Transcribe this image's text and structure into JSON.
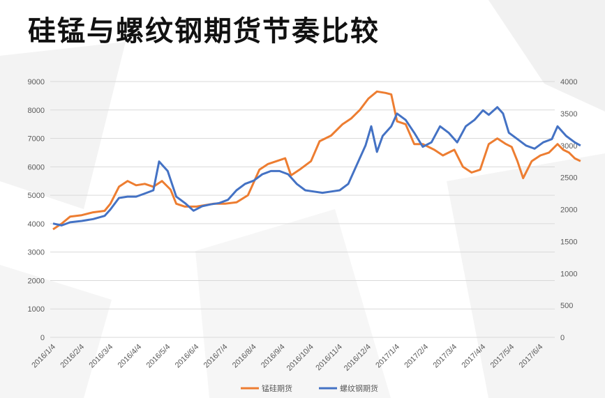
{
  "page_title": "硅锰与螺纹钢期货节奏比较",
  "chart_data": {
    "type": "line",
    "title": "",
    "x_labels": [
      "2016/1/4",
      "2016/2/4",
      "2016/3/4",
      "2016/4/4",
      "2016/5/4",
      "2016/6/4",
      "2016/7/4",
      "2016/8/4",
      "2016/9/4",
      "2016/10/4",
      "2016/11/4",
      "2016/12/4",
      "2017/1/4",
      "2017/2/4",
      "2017/3/4",
      "2017/4/4",
      "2017/5/4",
      "2017/6/4"
    ],
    "y_left": {
      "min": 0,
      "max": 9000,
      "ticks": [
        "0",
        "1000",
        "2000",
        "3000",
        "4000",
        "5000",
        "6000",
        "7000",
        "8000",
        "9000"
      ]
    },
    "y_right": {
      "min": 0,
      "max": 4000,
      "ticks": [
        "0",
        "500",
        "1000",
        "1500",
        "2000",
        "2500",
        "3000",
        "3500",
        "4000"
      ]
    },
    "grid": true,
    "legend_position": "bottom",
    "series": [
      {
        "name": "锰硅期货",
        "axis": "left",
        "color": "#ED7D31",
        "points": [
          [
            0.0,
            3800
          ],
          [
            0.3,
            4000
          ],
          [
            0.6,
            4250
          ],
          [
            1.0,
            4300
          ],
          [
            1.4,
            4400
          ],
          [
            1.8,
            4450
          ],
          [
            2.0,
            4700
          ],
          [
            2.3,
            5300
          ],
          [
            2.6,
            5500
          ],
          [
            2.9,
            5350
          ],
          [
            3.2,
            5400
          ],
          [
            3.5,
            5300
          ],
          [
            3.8,
            5500
          ],
          [
            4.1,
            5200
          ],
          [
            4.3,
            4700
          ],
          [
            4.6,
            4600
          ],
          [
            5.0,
            4600
          ],
          [
            5.3,
            4650
          ],
          [
            5.6,
            4700
          ],
          [
            6.0,
            4700
          ],
          [
            6.4,
            4750
          ],
          [
            6.8,
            5000
          ],
          [
            7.2,
            5900
          ],
          [
            7.5,
            6100
          ],
          [
            7.8,
            6200
          ],
          [
            8.1,
            6300
          ],
          [
            8.3,
            5700
          ],
          [
            8.6,
            5900
          ],
          [
            9.0,
            6200
          ],
          [
            9.3,
            6900
          ],
          [
            9.7,
            7100
          ],
          [
            10.1,
            7500
          ],
          [
            10.4,
            7700
          ],
          [
            10.7,
            8000
          ],
          [
            11.0,
            8400
          ],
          [
            11.3,
            8650
          ],
          [
            11.6,
            8600
          ],
          [
            11.8,
            8550
          ],
          [
            12.0,
            7600
          ],
          [
            12.3,
            7500
          ],
          [
            12.6,
            6800
          ],
          [
            12.9,
            6800
          ],
          [
            13.3,
            6600
          ],
          [
            13.6,
            6400
          ],
          [
            14.0,
            6600
          ],
          [
            14.3,
            6000
          ],
          [
            14.6,
            5800
          ],
          [
            14.9,
            5900
          ],
          [
            15.2,
            6800
          ],
          [
            15.5,
            7000
          ],
          [
            15.8,
            6800
          ],
          [
            16.0,
            6700
          ],
          [
            16.2,
            6200
          ],
          [
            16.4,
            5600
          ],
          [
            16.7,
            6200
          ],
          [
            17.0,
            6400
          ],
          [
            17.3,
            6500
          ],
          [
            17.6,
            6800
          ],
          [
            17.8,
            6600
          ],
          [
            18.0,
            6500
          ],
          [
            18.2,
            6300
          ],
          [
            18.4,
            6200
          ]
        ]
      },
      {
        "name": "螺纹钢期货",
        "axis": "right",
        "color": "#4472C4",
        "points": [
          [
            0.0,
            1780
          ],
          [
            0.3,
            1750
          ],
          [
            0.6,
            1800
          ],
          [
            1.0,
            1820
          ],
          [
            1.4,
            1850
          ],
          [
            1.8,
            1900
          ],
          [
            2.0,
            2000
          ],
          [
            2.3,
            2180
          ],
          [
            2.6,
            2200
          ],
          [
            2.9,
            2200
          ],
          [
            3.2,
            2250
          ],
          [
            3.5,
            2300
          ],
          [
            3.7,
            2750
          ],
          [
            4.0,
            2600
          ],
          [
            4.3,
            2200
          ],
          [
            4.6,
            2100
          ],
          [
            4.9,
            1980
          ],
          [
            5.2,
            2050
          ],
          [
            5.5,
            2080
          ],
          [
            5.8,
            2100
          ],
          [
            6.1,
            2150
          ],
          [
            6.4,
            2300
          ],
          [
            6.7,
            2400
          ],
          [
            7.0,
            2450
          ],
          [
            7.3,
            2550
          ],
          [
            7.6,
            2600
          ],
          [
            7.9,
            2600
          ],
          [
            8.2,
            2550
          ],
          [
            8.5,
            2400
          ],
          [
            8.8,
            2300
          ],
          [
            9.1,
            2280
          ],
          [
            9.4,
            2260
          ],
          [
            9.7,
            2280
          ],
          [
            10.0,
            2300
          ],
          [
            10.3,
            2400
          ],
          [
            10.6,
            2700
          ],
          [
            10.9,
            3000
          ],
          [
            11.1,
            3300
          ],
          [
            11.3,
            2900
          ],
          [
            11.5,
            3150
          ],
          [
            11.8,
            3300
          ],
          [
            12.0,
            3500
          ],
          [
            12.3,
            3400
          ],
          [
            12.6,
            3200
          ],
          [
            12.9,
            2980
          ],
          [
            13.2,
            3050
          ],
          [
            13.5,
            3300
          ],
          [
            13.8,
            3200
          ],
          [
            14.1,
            3050
          ],
          [
            14.4,
            3300
          ],
          [
            14.7,
            3400
          ],
          [
            15.0,
            3550
          ],
          [
            15.2,
            3480
          ],
          [
            15.5,
            3600
          ],
          [
            15.7,
            3500
          ],
          [
            15.9,
            3200
          ],
          [
            16.2,
            3100
          ],
          [
            16.5,
            3000
          ],
          [
            16.8,
            2950
          ],
          [
            17.1,
            3050
          ],
          [
            17.4,
            3100
          ],
          [
            17.6,
            3300
          ],
          [
            17.9,
            3150
          ],
          [
            18.2,
            3050
          ],
          [
            18.4,
            3000
          ]
        ]
      }
    ]
  }
}
